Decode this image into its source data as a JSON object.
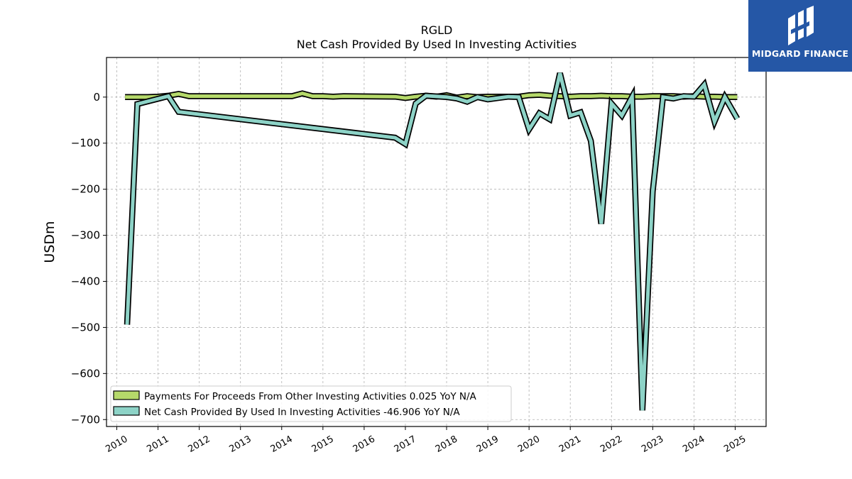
{
  "brand": {
    "name": "MIDGARD FINANCE",
    "color": "#2557a6"
  },
  "chart_data": {
    "type": "line",
    "title": "RGLD",
    "subtitle": "Net Cash Provided By Used In Investing Activities",
    "ylabel": "USDm",
    "xlabel": "",
    "ylim": [
      -715,
      86
    ],
    "xlim": [
      2009.75,
      2025.75
    ],
    "yticks": [
      0,
      -100,
      -200,
      -300,
      -400,
      -500,
      -600,
      -700
    ],
    "ytick_labels": [
      "0",
      "−100",
      "−200",
      "−300",
      "−400",
      "−500",
      "−600",
      "−700"
    ],
    "xticks": [
      2010,
      2011,
      2012,
      2013,
      2014,
      2015,
      2016,
      2017,
      2018,
      2019,
      2020,
      2021,
      2022,
      2023,
      2024,
      2025
    ],
    "grid": true,
    "legend_position": "bottom-left",
    "series": [
      {
        "name": "Payments For Proceeds From Other Investing Activities",
        "legend_label": "Payments For Proceeds From Other Investing Activities  0.025 YoY N/A",
        "color": "#b5d96a",
        "x": [
          2010.2,
          2010.5,
          2010.75,
          2011.0,
          2011.25,
          2011.5,
          2011.75,
          2014.25,
          2014.5,
          2014.75,
          2015.0,
          2015.25,
          2015.5,
          2016.75,
          2017.0,
          2017.25,
          2017.5,
          2017.75,
          2018.0,
          2018.25,
          2018.5,
          2018.75,
          2019.0,
          2019.25,
          2019.5,
          2019.75,
          2020.0,
          2020.25,
          2020.5,
          2020.75,
          2021.0,
          2021.25,
          2021.5,
          2021.75,
          2022.0,
          2022.25,
          2022.5,
          2022.75,
          2023.0,
          2023.25,
          2023.5,
          2023.75,
          2024.0,
          2024.25,
          2024.5,
          2024.75,
          2025.05
        ],
        "values": [
          0,
          0,
          0,
          1,
          3,
          7,
          2,
          2,
          8,
          2,
          2,
          1,
          2,
          1,
          -2,
          1,
          3,
          1,
          4,
          -1,
          2,
          0,
          1,
          1,
          1,
          1,
          4,
          5,
          3,
          2,
          1,
          2,
          2,
          3,
          2,
          2,
          1,
          1,
          2,
          2,
          2,
          1,
          2,
          1,
          1,
          0,
          0.025
        ]
      },
      {
        "name": "Net Cash Provided By Used In Investing Activities",
        "legend_label": "Net Cash Provided By Used In Investing Activities  -46.906 YoY N/A",
        "color": "#8dd3c7",
        "x": [
          2010.25,
          2010.5,
          2011.25,
          2011.5,
          2016.75,
          2017.0,
          2017.25,
          2017.5,
          2018.0,
          2018.25,
          2018.5,
          2018.75,
          2019.0,
          2019.25,
          2019.5,
          2019.75,
          2020.0,
          2020.25,
          2020.5,
          2020.75,
          2021.0,
          2021.25,
          2021.5,
          2021.75,
          2022.0,
          2022.25,
          2022.5,
          2022.75,
          2023.0,
          2023.25,
          2023.5,
          2023.75,
          2024.0,
          2024.25,
          2024.5,
          2024.75,
          2025.05
        ],
        "values": [
          -494,
          -15,
          2,
          -32,
          -88,
          -102,
          -14,
          3,
          0,
          -3,
          -10,
          0,
          -5,
          -2,
          1,
          0,
          -70,
          -35,
          -48,
          52,
          -40,
          -33,
          -95,
          -275,
          -14,
          -40,
          1,
          -680,
          -205,
          0,
          -3,
          2,
          1,
          27,
          -53,
          0,
          -47
        ]
      }
    ]
  }
}
